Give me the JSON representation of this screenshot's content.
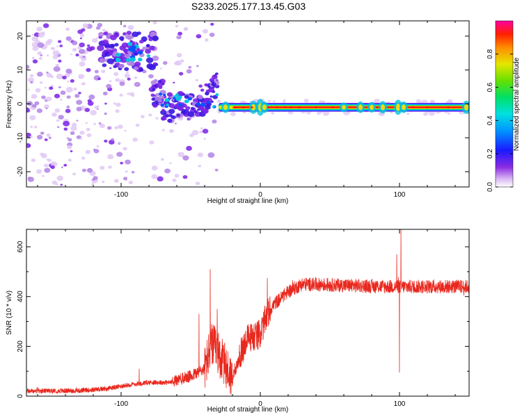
{
  "figure": {
    "title": "S233.2025.177.13.45.G03"
  },
  "chart_data": [
    {
      "type": "heatmap",
      "xlabel": "Height of straight line (km)",
      "ylabel": "Frequency (Hz)",
      "xlim": [
        -168,
        150
      ],
      "ylim": [
        -24.5,
        24.5
      ],
      "xticks": [
        -100,
        0,
        100
      ],
      "yticks": [
        -20,
        -10,
        0,
        10,
        20
      ],
      "colorbar": {
        "label": "Normalized spectral amplitude",
        "range": [
          0.0,
          1.0
        ],
        "ticks": [
          0.0,
          0.2,
          0.4,
          0.6,
          0.8
        ]
      },
      "features": {
        "signal_line_frequency_hz": -1,
        "scatter_region_x": [
          -168,
          -60
        ],
        "ridge_region_x": [
          -78,
          -30
        ],
        "ridge_peak_frequency_hz": 15,
        "strong_band_x": [
          -30,
          150
        ]
      },
      "colors": [
        "#ffffff",
        "#e0c8f4",
        "#b183e6",
        "#7a22e6",
        "#3a18e0",
        "#0055ff",
        "#00c4e0",
        "#00e070",
        "#d8e800",
        "#ff8c00",
        "#ff0000",
        "#ff00a0"
      ]
    },
    {
      "type": "line",
      "xlabel": "Height of straight line (km)",
      "ylabel": "SNR (10 * v/v)",
      "xlim": [
        -168,
        150
      ],
      "ylim": [
        0,
        670
      ],
      "xticks": [
        -100,
        0,
        100
      ],
      "yticks": [
        0,
        200,
        400,
        600
      ],
      "series_color": "#e8281e",
      "profile": {
        "x": [
          -168,
          -130,
          -110,
          -95,
          -80,
          -65,
          -50,
          -40,
          -35,
          -30,
          -25,
          -20,
          -10,
          0,
          5,
          10,
          20,
          30,
          60,
          90,
          100,
          120,
          150
        ],
        "y": [
          20,
          22,
          30,
          45,
          55,
          55,
          80,
          110,
          210,
          170,
          120,
          70,
          230,
          250,
          330,
          370,
          420,
          450,
          445,
          440,
          440,
          440,
          440
        ]
      },
      "spikes": [
        {
          "x": -87,
          "y": 110
        },
        {
          "x": -44,
          "y": 330
        },
        {
          "x": -36,
          "y": 510
        },
        {
          "x": -31,
          "y": 350
        },
        {
          "x": 5,
          "y": 475
        },
        {
          "x": 98,
          "y": 570
        },
        {
          "x": 101,
          "y": 670
        },
        {
          "x": 100,
          "y": 95
        }
      ]
    }
  ]
}
